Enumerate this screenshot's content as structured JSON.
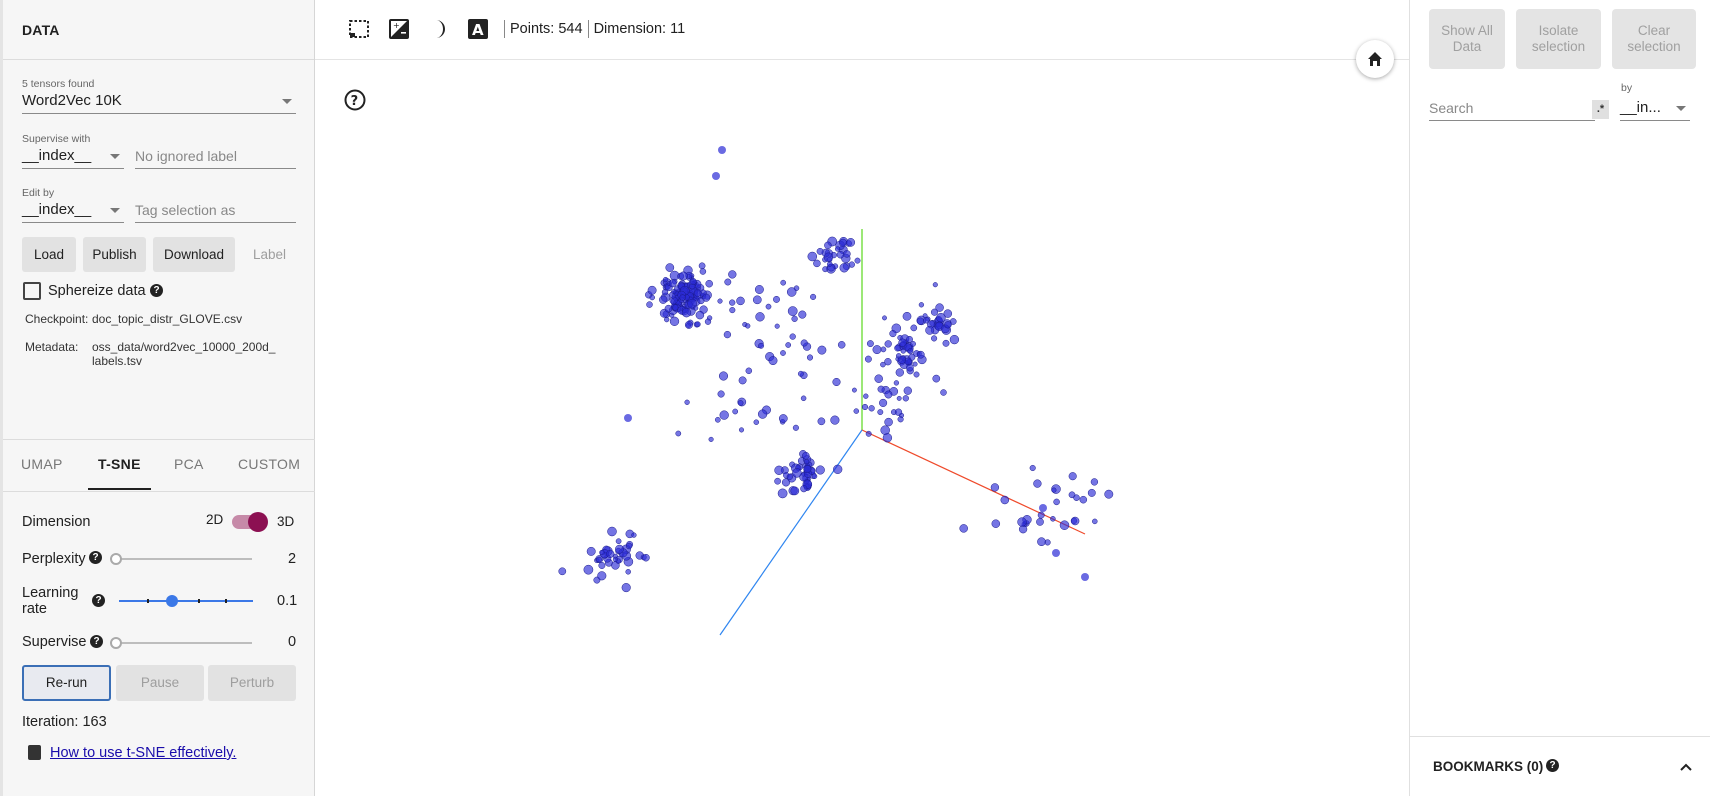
{
  "left": {
    "header": "DATA",
    "tensors_found": "5 tensors found",
    "tensor_selected": "Word2Vec 10K",
    "supervise_label": "Supervise with",
    "supervise_value": "__index__",
    "ignored_label_placeholder": "No ignored label",
    "edit_by_label": "Edit by",
    "edit_by_value": "__index__",
    "tag_placeholder": "Tag selection as",
    "buttons": {
      "load": "Load",
      "publish": "Publish",
      "download": "Download",
      "label": "Label"
    },
    "sphereize": "Sphereize data",
    "checkpoint_label": "Checkpoint:",
    "checkpoint_value": "doc_topic_distr_GLOVE.csv",
    "metadata_label": "Metadata:",
    "metadata_value_1": "oss_data/word2vec_10000_200d_",
    "metadata_value_2": "labels.tsv",
    "tabs": [
      "UMAP",
      "T-SNE",
      "PCA",
      "CUSTOM"
    ],
    "active_tab": "T-SNE",
    "dimension_label": "Dimension",
    "dim_2d": "2D",
    "dim_3d": "3D",
    "perplexity_label": "Perplexity",
    "perplexity_value": "2",
    "learning_rate_label_1": "Learning",
    "learning_rate_label_2": "rate",
    "learning_rate_value": "0.1",
    "supervise_slider_label": "Supervise",
    "supervise_slider_value": "0",
    "rerun": "Re-run",
    "pause": "Pause",
    "perturb": "Perturb",
    "iteration": "Iteration: 163",
    "link": "How to use t-SNE effectively."
  },
  "topbar": {
    "points": "Points: 544",
    "dimension": "Dimension: 11",
    "icons": [
      "selection-box-icon",
      "night-mode-icon",
      "contrast-icon",
      "label-text-icon"
    ]
  },
  "right": {
    "show_all_1": "Show All",
    "show_all_2": "Data",
    "isolate_1": "Isolate",
    "isolate_2": "selection",
    "clear_1": "Clear",
    "clear_2": "selection",
    "by_label": "by",
    "search_placeholder": "Search",
    "regex": ".*",
    "by_value": "__in...",
    "bookmarks": "BOOKMARKS (0)"
  },
  "colors": {
    "point": "#2b2bd6",
    "accent": "#8c1052",
    "blue": "#3b78e7",
    "link": "#1a0dab"
  }
}
